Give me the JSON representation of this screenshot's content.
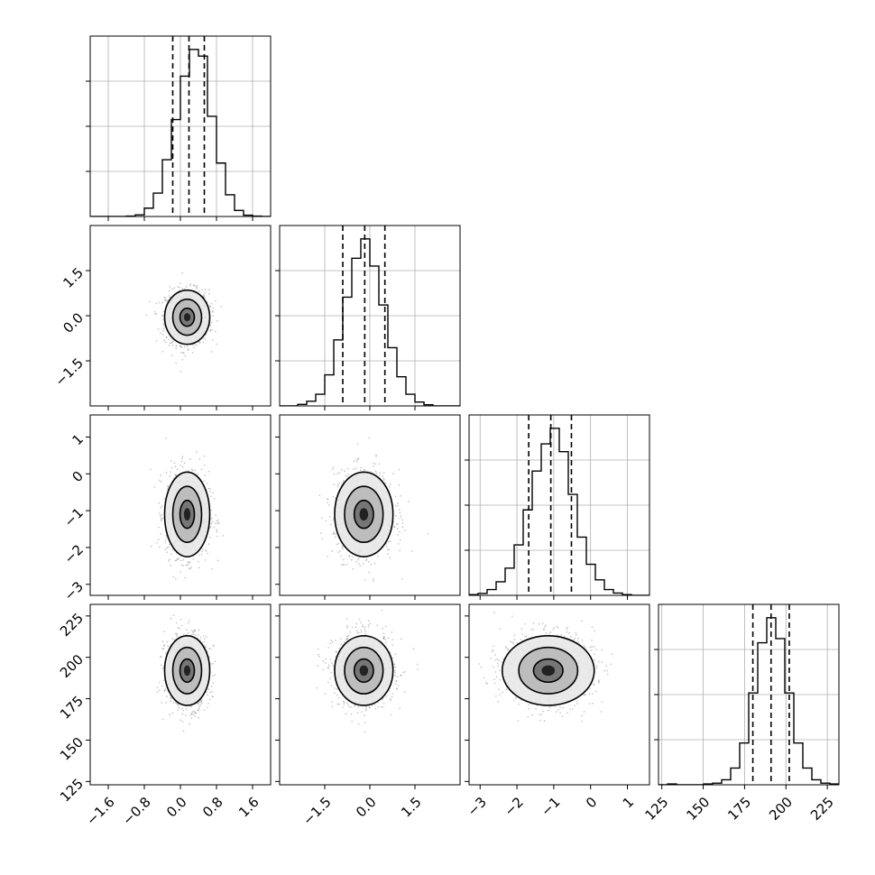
{
  "chart_data": {
    "type": "corner",
    "grid": true,
    "params": [
      {
        "index": 0,
        "range": [
          -2.0,
          2.0
        ],
        "ticks": [
          -1.6,
          -0.8,
          0.0,
          0.8,
          1.6
        ],
        "tick_labels": [
          "−1.6",
          "−0.8",
          "0.0",
          "0.8",
          "1.6"
        ],
        "quantiles": [
          -0.17,
          0.19,
          0.53
        ],
        "hist_bins": [
          -2.0,
          -1.8,
          -1.6,
          -1.4,
          -1.2,
          -1.0,
          -0.8,
          -0.6,
          -0.4,
          -0.2,
          0.0,
          0.2,
          0.4,
          0.6,
          0.8,
          1.0,
          1.2,
          1.4,
          1.6,
          1.8,
          2.0
        ],
        "hist_counts": [
          0,
          0,
          0,
          0,
          0.001,
          0.005,
          0.025,
          0.07,
          0.17,
          0.29,
          0.42,
          0.5,
          0.48,
          0.3,
          0.16,
          0.065,
          0.018,
          0.004,
          0.001,
          0
        ]
      },
      {
        "index": 1,
        "range": [
          -3.0,
          3.0
        ],
        "ticks": [
          -1.5,
          0.0,
          1.5
        ],
        "tick_labels": [
          "−1.5",
          "0.0",
          "1.5"
        ],
        "quantiles": [
          -0.9,
          -0.17,
          0.5
        ],
        "hist_bins": [
          -3.0,
          -2.7,
          -2.4,
          -2.1,
          -1.8,
          -1.5,
          -1.2,
          -0.9,
          -0.6,
          -0.3,
          0.0,
          0.3,
          0.6,
          0.9,
          1.2,
          1.5,
          1.8,
          2.1,
          2.4,
          2.7,
          3.0
        ],
        "hist_counts": [
          0,
          0,
          0.004,
          0.012,
          0.03,
          0.08,
          0.17,
          0.28,
          0.38,
          0.43,
          0.36,
          0.26,
          0.15,
          0.075,
          0.03,
          0.01,
          0.003,
          0,
          0,
          0
        ]
      },
      {
        "index": 2,
        "range": [
          -3.3,
          1.6
        ],
        "ticks": [
          -3,
          -2,
          -1,
          0,
          1
        ],
        "tick_labels": [
          "−3",
          "−2",
          "−1",
          "0",
          "1"
        ],
        "quantiles": [
          -1.68,
          -1.08,
          -0.52
        ],
        "hist_bins": [
          -3.3,
          -3.055,
          -2.81,
          -2.565,
          -2.32,
          -2.075,
          -1.83,
          -1.585,
          -1.34,
          -1.095,
          -0.85,
          -0.605,
          -0.36,
          -0.115,
          0.13,
          0.375,
          0.62,
          0.865,
          1.11,
          1.355,
          1.6
        ],
        "hist_counts": [
          0.002,
          0.005,
          0.015,
          0.035,
          0.07,
          0.13,
          0.22,
          0.32,
          0.39,
          0.43,
          0.37,
          0.26,
          0.15,
          0.08,
          0.04,
          0.015,
          0.006,
          0.002,
          0,
          0
        ]
      },
      {
        "index": 3,
        "range": [
          123,
          232
        ],
        "ticks": [
          125,
          150,
          175,
          200,
          225
        ],
        "tick_labels": [
          "125",
          "150",
          "175",
          "200",
          "225"
        ],
        "quantiles": [
          180,
          191,
          202
        ],
        "hist_bins": [
          123,
          128.45,
          133.9,
          139.35,
          144.8,
          150.25,
          155.7,
          161.15,
          166.6,
          172.05,
          177.5,
          182.95,
          188.4,
          193.85,
          199.3,
          204.75,
          210.2,
          215.65,
          221.1,
          226.55,
          232
        ],
        "hist_counts": [
          0,
          0.002,
          0,
          0,
          0,
          0.002,
          0.004,
          0.012,
          0.04,
          0.1,
          0.22,
          0.34,
          0.4,
          0.35,
          0.22,
          0.1,
          0.04,
          0.012,
          0.004,
          0.002
        ]
      }
    ],
    "pairs": [
      {
        "x": 0,
        "y": 1,
        "center": [
          0.15,
          -0.05
        ],
        "sd": [
          0.24,
          0.45
        ],
        "n_points": 1100,
        "contour_levels": [
          {
            "rx": 0.16,
            "ry": 0.3
          },
          {
            "rx": 0.32,
            "ry": 0.6
          },
          {
            "rx": 0.5,
            "ry": 0.9
          }
        ]
      },
      {
        "x": 0,
        "y": 2,
        "center": [
          0.15,
          -1.1
        ],
        "sd": [
          0.24,
          0.58
        ],
        "n_points": 1100,
        "contour_levels": [
          {
            "rx": 0.16,
            "ry": 0.38
          },
          {
            "rx": 0.32,
            "ry": 0.76
          },
          {
            "rx": 0.5,
            "ry": 1.15
          }
        ]
      },
      {
        "x": 0,
        "y": 3,
        "center": [
          0.15,
          192
        ],
        "sd": [
          0.24,
          11
        ],
        "n_points": 1100,
        "contour_levels": [
          {
            "rx": 0.16,
            "ry": 7
          },
          {
            "rx": 0.32,
            "ry": 14
          },
          {
            "rx": 0.5,
            "ry": 21
          }
        ]
      },
      {
        "x": 1,
        "y": 2,
        "center": [
          -0.2,
          -1.1
        ],
        "sd": [
          0.5,
          0.58
        ],
        "n_points": 1100,
        "contour_levels": [
          {
            "rx": 0.32,
            "ry": 0.38
          },
          {
            "rx": 0.64,
            "ry": 0.76
          },
          {
            "rx": 0.97,
            "ry": 1.15
          }
        ]
      },
      {
        "x": 1,
        "y": 3,
        "center": [
          -0.2,
          192
        ],
        "sd": [
          0.5,
          11
        ],
        "n_points": 1100,
        "contour_levels": [
          {
            "rx": 0.32,
            "ry": 7
          },
          {
            "rx": 0.64,
            "ry": 14
          },
          {
            "rx": 0.97,
            "ry": 21
          }
        ]
      },
      {
        "x": 2,
        "y": 3,
        "center": [
          -1.15,
          192
        ],
        "sd": [
          0.62,
          11
        ],
        "n_points": 1100,
        "contour_levels": [
          {
            "rx": 0.4,
            "ry": 7
          },
          {
            "rx": 0.8,
            "ry": 14
          },
          {
            "rx": 1.25,
            "ry": 21
          }
        ]
      }
    ]
  }
}
